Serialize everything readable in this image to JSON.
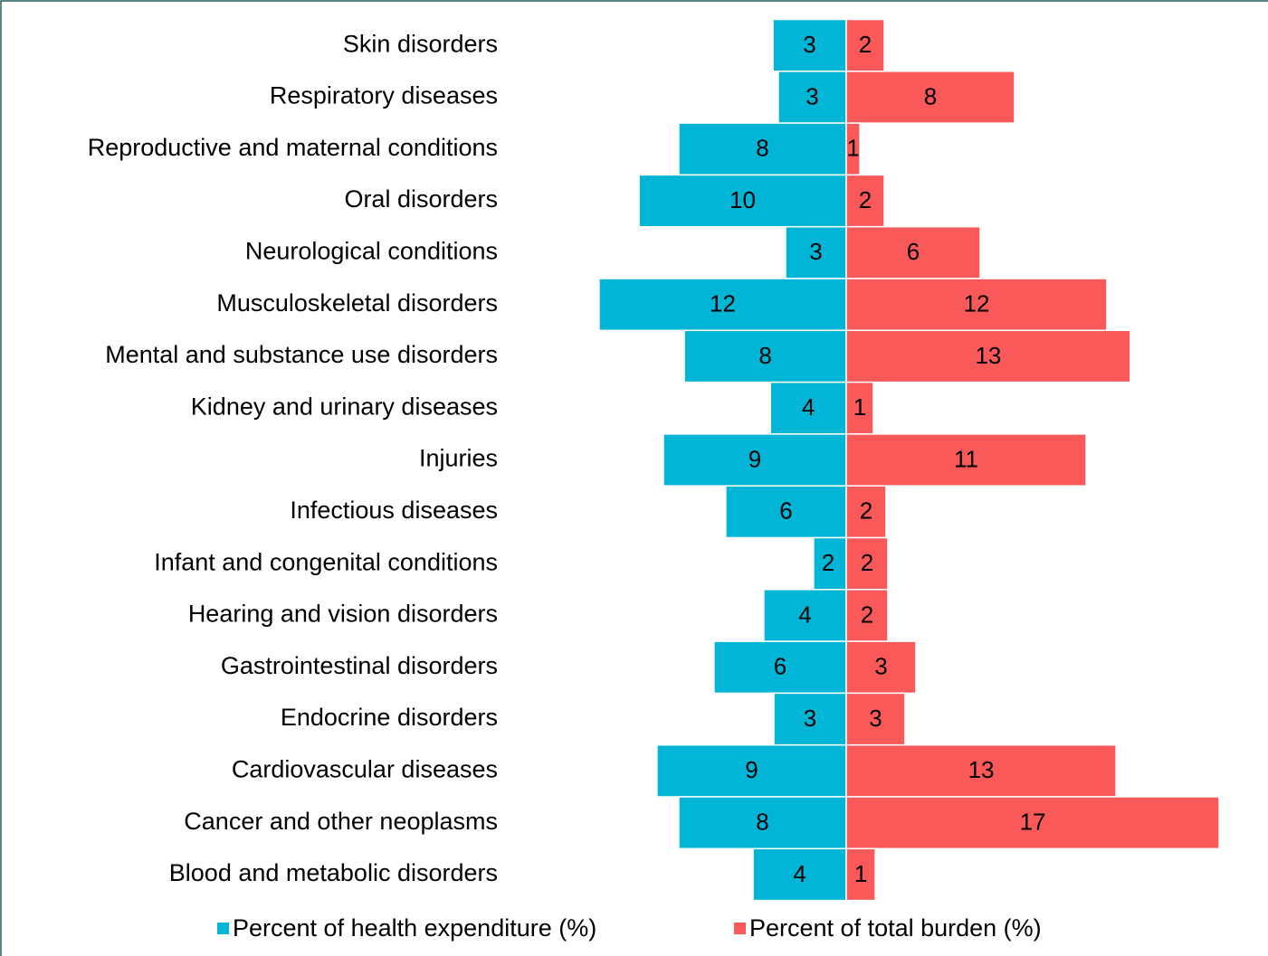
{
  "chart_data": {
    "type": "butterfly-bar",
    "categories": [
      "Skin disorders",
      "Respiratory diseases",
      "Reproductive and maternal conditions",
      "Oral disorders",
      "Neurological conditions",
      "Musculoskeletal disorders",
      "Mental and substance use disorders",
      "Kidney and urinary diseases",
      "Injuries",
      "Infectious diseases",
      "Infant and congenital conditions",
      "Hearing and vision disorders",
      "Gastrointestinal disorders",
      "Endocrine disorders",
      "Cardiovascular diseases",
      "Cancer and other neoplasms",
      "Blood and metabolic disorders"
    ],
    "series": [
      {
        "name": "Percent of health expenditure (%)",
        "color": "#00b5d6",
        "side": "left",
        "values": [
          3.43,
          3.18,
          7.84,
          9.7,
          2.84,
          11.57,
          7.58,
          3.55,
          8.56,
          5.64,
          1.53,
          3.86,
          6.19,
          3.39,
          8.86,
          7.84,
          4.36
        ],
        "value_labels": [
          "3",
          "3",
          "8",
          "10",
          "3",
          "12",
          "8",
          "4",
          "9",
          "6",
          "2",
          "4",
          "6",
          "3",
          "9",
          "8",
          "4"
        ]
      },
      {
        "name": "Percent of total burden (%)",
        "color": "#f95959",
        "side": "right",
        "values": [
          1.78,
          7.88,
          0.64,
          1.78,
          6.27,
          12.2,
          13.3,
          1.27,
          11.23,
          1.86,
          1.95,
          1.95,
          3.26,
          2.75,
          12.63,
          17.46,
          1.36
        ],
        "value_labels": [
          "2",
          "8",
          "1",
          "2",
          "6",
          "12",
          "13",
          "1",
          "11",
          "2",
          "2",
          "2",
          "3",
          "3",
          "13",
          "17",
          "1"
        ]
      }
    ],
    "legend": "bottom"
  }
}
